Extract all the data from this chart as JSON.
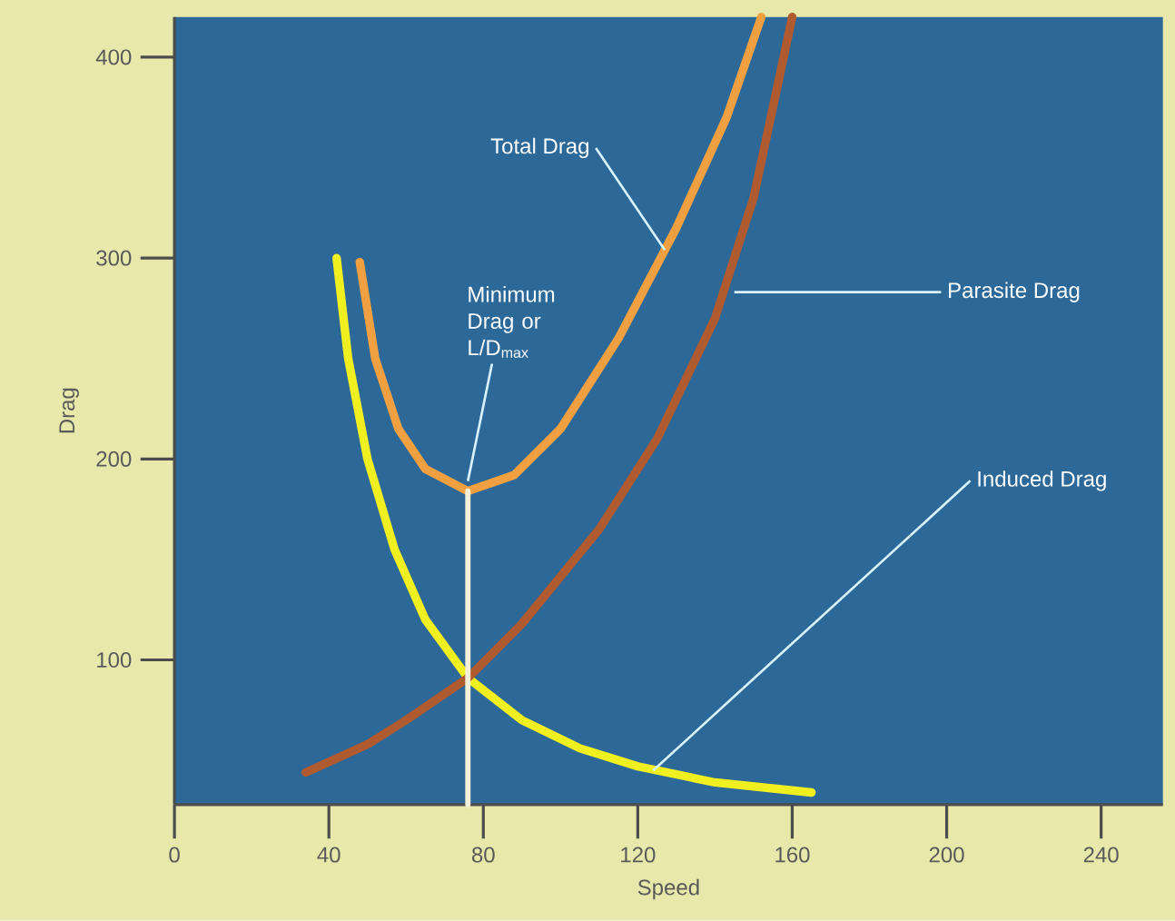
{
  "chart_data": {
    "type": "line",
    "xlabel": "Speed",
    "ylabel": "Drag",
    "xlim": [
      0,
      256
    ],
    "ylim": [
      28,
      420
    ],
    "xticks": [
      0,
      40,
      80,
      120,
      160,
      200,
      240
    ],
    "yticks": [
      100,
      200,
      300,
      400
    ],
    "marker": "none",
    "line_style": "solid",
    "series": [
      {
        "color": "#f0f020",
        "x": [
          42,
          45,
          50,
          57,
          65,
          76,
          90,
          105,
          120,
          140,
          165
        ],
        "values": [
          300,
          250,
          200,
          155,
          120,
          91,
          70,
          56,
          47,
          39,
          34
        ]
      },
      {
        "color": "#b05a30",
        "x": [
          34,
          50,
          60,
          76,
          90,
          110,
          125,
          140,
          150,
          160
        ],
        "values": [
          44,
          58,
          70,
          91,
          118,
          165,
          210,
          270,
          330,
          420
        ]
      },
      {
        "color": "#f0a040",
        "x": [
          48,
          52,
          58,
          65,
          76,
          88,
          100,
          115,
          130,
          143,
          152
        ],
        "values": [
          298,
          250,
          215,
          195,
          184,
          192,
          215,
          260,
          315,
          370,
          420
        ]
      },
      {
        "color": "#f4f0d8",
        "x": [
          76,
          76
        ],
        "values": [
          28,
          184
        ]
      }
    ],
    "annotations": [
      {
        "text": "Total Drag",
        "x": 127,
        "y": 304
      },
      {
        "text": "Parasite Drag",
        "x": 145,
        "y": 283
      },
      {
        "text": "Induced Drag",
        "x": 124,
        "y": 45
      },
      {
        "text": "Minimum Drag or L/D$_{max}$",
        "x": 76,
        "y": 189
      }
    ]
  }
}
